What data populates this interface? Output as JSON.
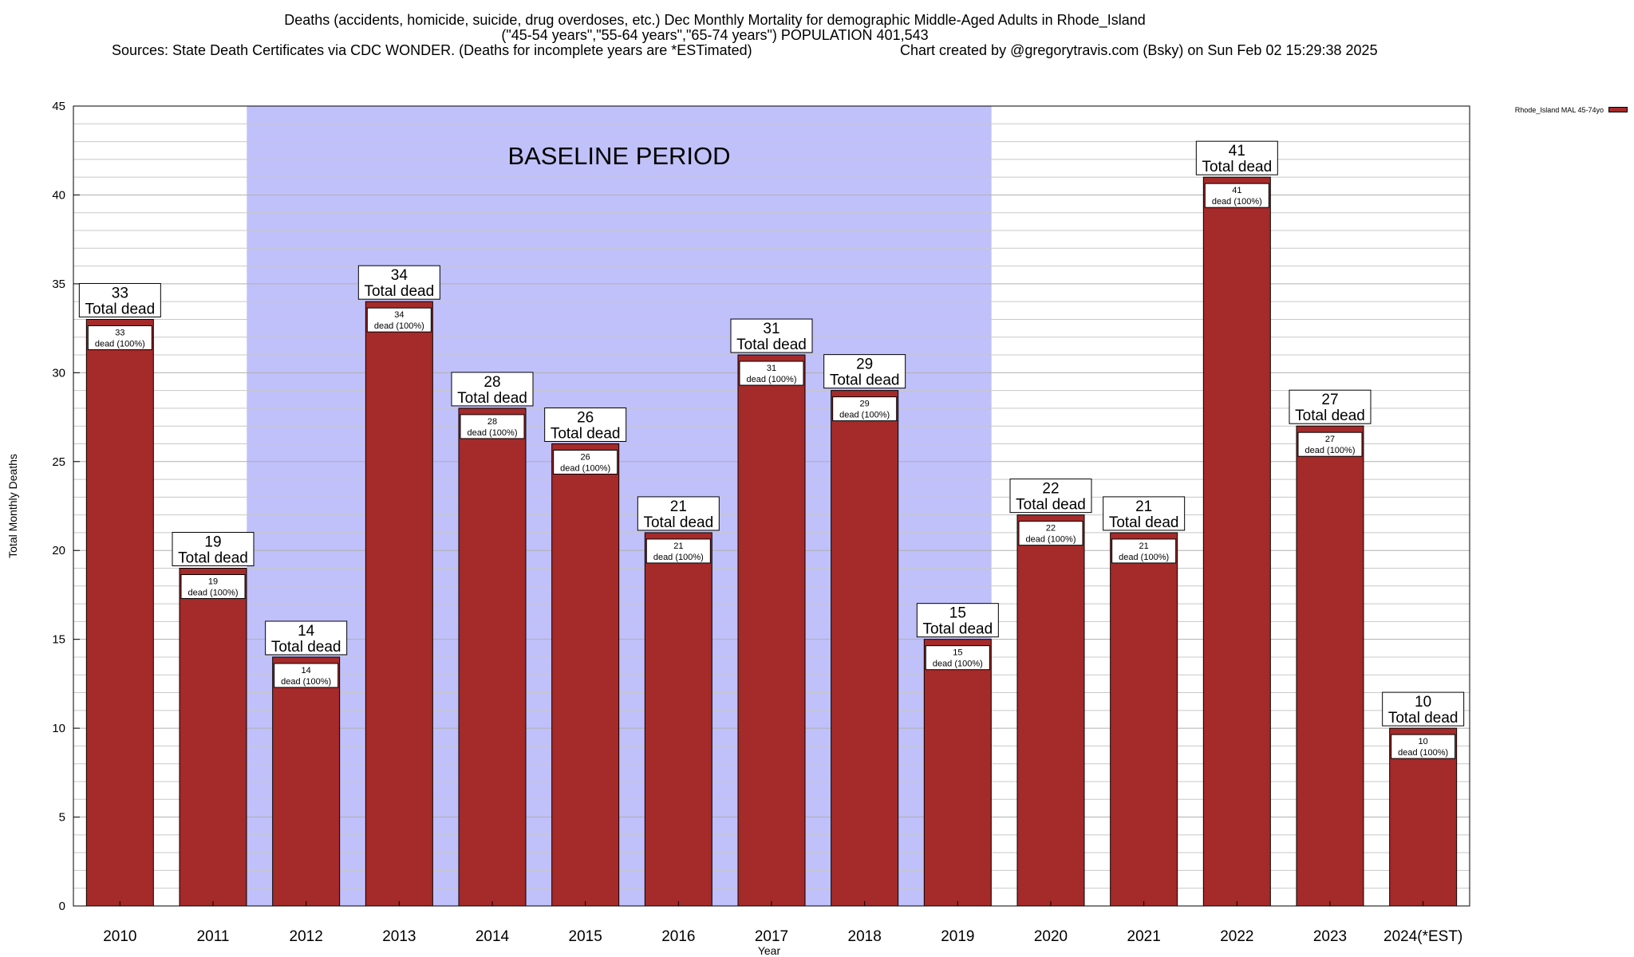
{
  "header": {
    "title_line1": "Deaths (accidents, homicide, suicide, drug overdoses, etc.) Dec Monthly Mortality for demographic Middle-Aged Adults in Rhode_Island",
    "title_line2": "(\"45-54 years\",\"55-64 years\",\"65-74 years\") POPULATION 401,543",
    "sources": "Sources: State Death Certificates via CDC WONDER. (Deaths for incomplete years are *ESTimated)",
    "credit": "Chart created by @gregorytravis.com (Bsky) on Sun Feb 02 15:29:38 2025"
  },
  "chart_data": {
    "type": "bar",
    "categories": [
      "2010",
      "2011",
      "2012",
      "2013",
      "2014",
      "2015",
      "2016",
      "2017",
      "2018",
      "2019",
      "2020",
      "2021",
      "2022",
      "2023",
      "2024(*EST)"
    ],
    "series": [
      {
        "name": "Rhode_Island MAL 45-74yo",
        "values": [
          33,
          19,
          14,
          34,
          28,
          26,
          21,
          31,
          29,
          15,
          22,
          21,
          41,
          27,
          10
        ],
        "color": "#a52a2a"
      }
    ],
    "total_label": "Total dead",
    "segment_label": "dead (100%)",
    "xlabel": "Year",
    "ylabel": "Total Monthly Deaths",
    "ylim": [
      0,
      45
    ],
    "yticks": [
      0,
      5,
      10,
      15,
      20,
      25,
      30,
      35,
      40,
      45
    ],
    "minor_grid_step": 1,
    "grid": true,
    "baseline": {
      "label": "BASELINE PERIOD",
      "start_category": "2012",
      "end_category": "2019",
      "color": "#c0c0fa"
    },
    "legend_position": "top-right"
  }
}
